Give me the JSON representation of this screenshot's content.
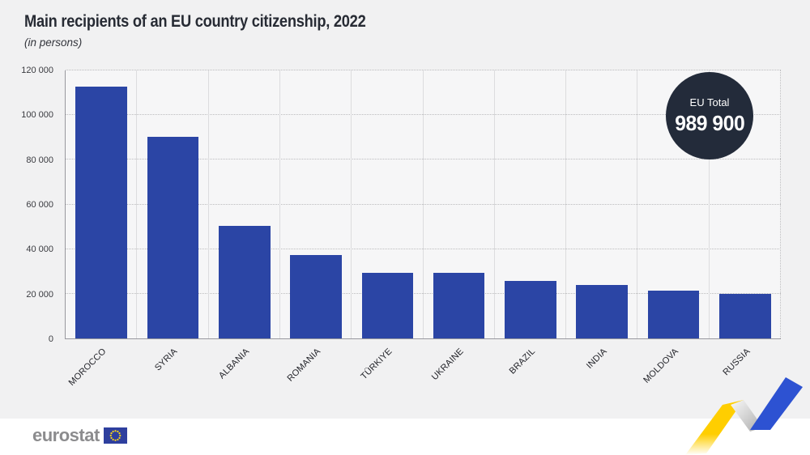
{
  "header": {
    "title": "Main recipients of an EU country citizenship, 2022",
    "subtitle": "(in persons)"
  },
  "badge": {
    "label": "EU Total",
    "value": "989 900"
  },
  "footer": {
    "logo_text": "eurostat"
  },
  "colors": {
    "bar_blue": "#2b45a5",
    "badge_navy": "#232b3a",
    "page_background": "#f1f1f2",
    "plot_background": "#f6f6f7",
    "title_text": "#272b34",
    "ribbon_blue": "#2d52d2",
    "ribbon_yellow": "#ffce00",
    "eu_flag_blue": "#2e3f9e",
    "eu_flag_stars": "#ffd617",
    "logo_gray": "#8c8c8e"
  },
  "chart_data": {
    "type": "bar",
    "title": "Main recipients of an EU country citizenship, 2022",
    "subtitle": "(in persons)",
    "unit": "persons",
    "categories": [
      "MOROCCO",
      "SYRIA",
      "ALBANIA",
      "ROMANIA",
      "TÜRKIYE",
      "UKRAINE",
      "BRAZIL",
      "INDIA",
      "MOLDOVA",
      "RUSSIA"
    ],
    "values": [
      112700,
      90400,
      50300,
      37400,
      29400,
      29200,
      25900,
      24000,
      21500,
      20100
    ],
    "eu_total": "989 900",
    "ylim": [
      0,
      120000
    ],
    "ytick_step": 20000,
    "ytick_labels": [
      "0",
      "20 000",
      "40 000",
      "60 000",
      "80 000",
      "100 000",
      "120 000"
    ],
    "grid": true,
    "legend_position": "none",
    "bar_color": "#2b45a5"
  }
}
